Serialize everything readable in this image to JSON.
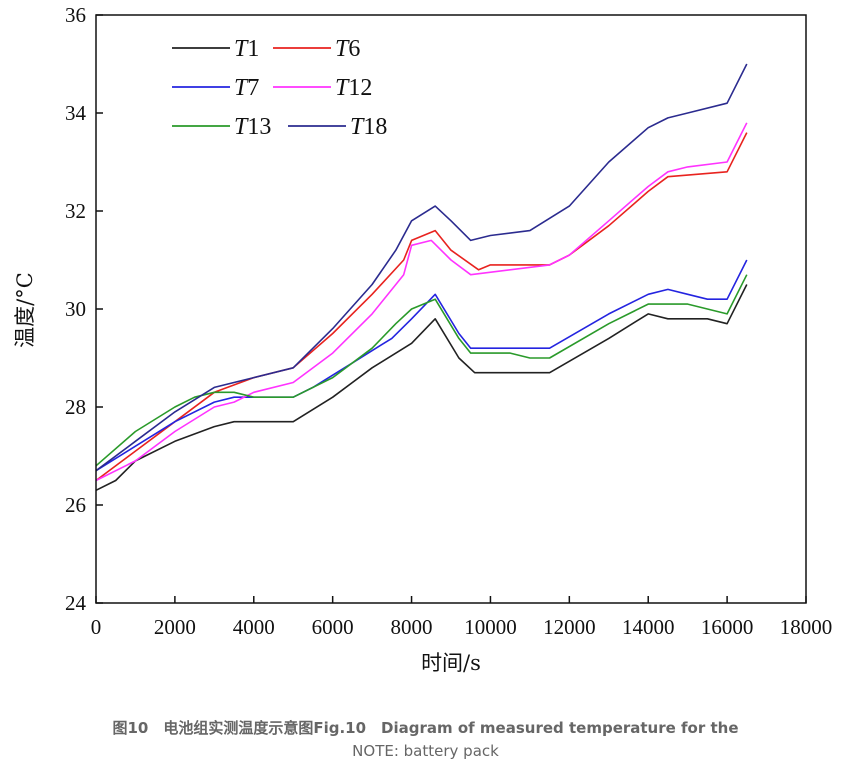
{
  "chart_data": {
    "type": "line",
    "xlabel": "时间/s",
    "ylabel": "温度/°C",
    "xlim": [
      0,
      18000
    ],
    "ylim": [
      24,
      36
    ],
    "xticks": [
      0,
      2000,
      4000,
      6000,
      8000,
      10000,
      12000,
      14000,
      16000,
      18000
    ],
    "yticks": [
      24,
      26,
      28,
      30,
      32,
      34,
      36
    ],
    "grid": false,
    "legend_position": "top-left",
    "series": [
      {
        "name": "T1",
        "color": "#222222",
        "points": [
          [
            0,
            26.3
          ],
          [
            500,
            26.5
          ],
          [
            1000,
            26.9
          ],
          [
            2000,
            27.3
          ],
          [
            3000,
            27.6
          ],
          [
            3500,
            27.7
          ],
          [
            5000,
            27.7
          ],
          [
            6000,
            28.2
          ],
          [
            7000,
            28.8
          ],
          [
            8000,
            29.3
          ],
          [
            8600,
            29.8
          ],
          [
            9200,
            29.0
          ],
          [
            9600,
            28.7
          ],
          [
            11500,
            28.7
          ],
          [
            13000,
            29.4
          ],
          [
            14000,
            29.9
          ],
          [
            14500,
            29.8
          ],
          [
            15500,
            29.8
          ],
          [
            16000,
            29.7
          ],
          [
            16500,
            30.5
          ]
        ]
      },
      {
        "name": "T6",
        "color": "#e8231f",
        "points": [
          [
            0,
            26.5
          ],
          [
            1000,
            27.1
          ],
          [
            2000,
            27.7
          ],
          [
            3000,
            28.3
          ],
          [
            4000,
            28.6
          ],
          [
            5000,
            28.8
          ],
          [
            6000,
            29.5
          ],
          [
            7000,
            30.3
          ],
          [
            7800,
            31.0
          ],
          [
            8000,
            31.4
          ],
          [
            8600,
            31.6
          ],
          [
            9000,
            31.2
          ],
          [
            9700,
            30.8
          ],
          [
            10000,
            30.9
          ],
          [
            11500,
            30.9
          ],
          [
            12000,
            31.1
          ],
          [
            13000,
            31.7
          ],
          [
            14000,
            32.4
          ],
          [
            14500,
            32.7
          ],
          [
            16000,
            32.8
          ],
          [
            16500,
            33.6
          ]
        ]
      },
      {
        "name": "T7",
        "color": "#2424e0",
        "points": [
          [
            0,
            26.7
          ],
          [
            1000,
            27.2
          ],
          [
            2000,
            27.7
          ],
          [
            3000,
            28.1
          ],
          [
            3500,
            28.2
          ],
          [
            5000,
            28.2
          ],
          [
            5500,
            28.4
          ],
          [
            6500,
            28.9
          ],
          [
            7500,
            29.4
          ],
          [
            8000,
            29.8
          ],
          [
            8600,
            30.3
          ],
          [
            9200,
            29.5
          ],
          [
            9500,
            29.2
          ],
          [
            11500,
            29.2
          ],
          [
            13000,
            29.9
          ],
          [
            14000,
            30.3
          ],
          [
            14500,
            30.4
          ],
          [
            15000,
            30.3
          ],
          [
            15500,
            30.2
          ],
          [
            16000,
            30.2
          ],
          [
            16500,
            31.0
          ]
        ]
      },
      {
        "name": "T12",
        "color": "#ff33ff",
        "points": [
          [
            0,
            26.5
          ],
          [
            1000,
            26.9
          ],
          [
            2000,
            27.5
          ],
          [
            3000,
            28.0
          ],
          [
            3500,
            28.1
          ],
          [
            4000,
            28.3
          ],
          [
            5000,
            28.5
          ],
          [
            6000,
            29.1
          ],
          [
            7000,
            29.9
          ],
          [
            7800,
            30.7
          ],
          [
            8000,
            31.3
          ],
          [
            8500,
            31.4
          ],
          [
            9000,
            31.0
          ],
          [
            9500,
            30.7
          ],
          [
            11500,
            30.9
          ],
          [
            12000,
            31.1
          ],
          [
            13000,
            31.8
          ],
          [
            14000,
            32.5
          ],
          [
            14500,
            32.8
          ],
          [
            15000,
            32.9
          ],
          [
            16000,
            33.0
          ],
          [
            16500,
            33.8
          ]
        ]
      },
      {
        "name": "T13",
        "color": "#2a9a2a",
        "points": [
          [
            0,
            26.8
          ],
          [
            1000,
            27.5
          ],
          [
            2000,
            28.0
          ],
          [
            2500,
            28.2
          ],
          [
            3000,
            28.3
          ],
          [
            3500,
            28.3
          ],
          [
            4000,
            28.2
          ],
          [
            5000,
            28.2
          ],
          [
            6000,
            28.6
          ],
          [
            7000,
            29.2
          ],
          [
            7600,
            29.7
          ],
          [
            8000,
            30.0
          ],
          [
            8600,
            30.2
          ],
          [
            9200,
            29.4
          ],
          [
            9500,
            29.1
          ],
          [
            10500,
            29.1
          ],
          [
            11000,
            29.0
          ],
          [
            11500,
            29.0
          ],
          [
            13000,
            29.7
          ],
          [
            14000,
            30.1
          ],
          [
            15000,
            30.1
          ],
          [
            15500,
            30.0
          ],
          [
            16000,
            29.9
          ],
          [
            16500,
            30.7
          ]
        ]
      },
      {
        "name": "T18",
        "color": "#2b2b8f",
        "points": [
          [
            0,
            26.7
          ],
          [
            1000,
            27.3
          ],
          [
            2000,
            27.9
          ],
          [
            3000,
            28.4
          ],
          [
            4000,
            28.6
          ],
          [
            5000,
            28.8
          ],
          [
            6000,
            29.6
          ],
          [
            7000,
            30.5
          ],
          [
            7600,
            31.2
          ],
          [
            8000,
            31.8
          ],
          [
            8600,
            32.1
          ],
          [
            9000,
            31.8
          ],
          [
            9500,
            31.4
          ],
          [
            10000,
            31.5
          ],
          [
            11000,
            31.6
          ],
          [
            12000,
            32.1
          ],
          [
            13000,
            33.0
          ],
          [
            14000,
            33.7
          ],
          [
            14500,
            33.9
          ],
          [
            15000,
            34.0
          ],
          [
            16000,
            34.2
          ],
          [
            16500,
            35.0
          ]
        ]
      }
    ]
  },
  "caption": {
    "line1": "图10　电池组实测温度示意图Fig.10　Diagram of measured temperature for the",
    "line2": "NOTE: battery pack"
  }
}
